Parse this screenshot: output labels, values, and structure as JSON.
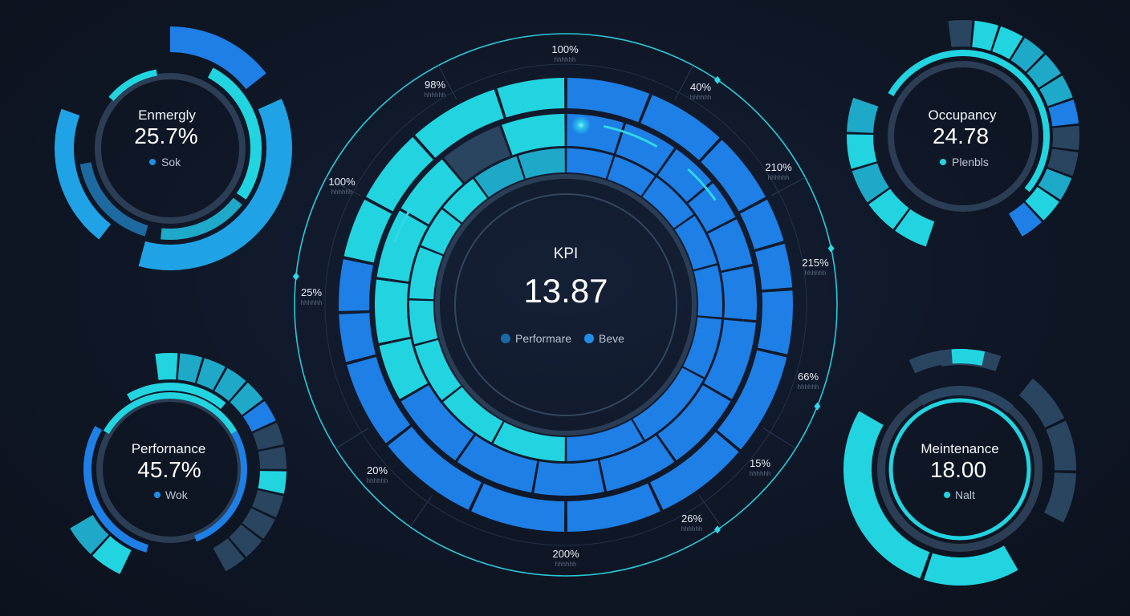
{
  "colors": {
    "background": "#0f1726",
    "cyan": "#22d4e0",
    "teal": "#1fa9c9",
    "blue": "#1e7fe6",
    "dark": "#2a4560",
    "ring": "#2f4157"
  },
  "kpi": {
    "label": "KPI",
    "value": "13.87",
    "legend": [
      {
        "label": "Performare",
        "color": "#1a6aa6"
      },
      {
        "label": "Beve",
        "color": "#1e8fe8"
      }
    ]
  },
  "scale_labels": [
    {
      "text": "100%",
      "sub": "hhhhhh"
    },
    {
      "text": "98%",
      "sub": "hhhhhh"
    },
    {
      "text": "40%",
      "sub": "hhhhhh"
    },
    {
      "text": "100%",
      "sub": "hhhhhh"
    },
    {
      "text": "210%",
      "sub": "hhhhhh"
    },
    {
      "text": "215%",
      "sub": "hhhhhh"
    },
    {
      "text": "25%",
      "sub": "hhhhhh"
    },
    {
      "text": "66%",
      "sub": "hhhhhh"
    },
    {
      "text": "20%",
      "sub": "hhhhhh"
    },
    {
      "text": "15%",
      "sub": "hhhhhh"
    },
    {
      "text": "26%",
      "sub": "hhhhhh"
    },
    {
      "text": "200%",
      "sub": "hhhhhh"
    }
  ],
  "gauges": [
    {
      "title": "Enmergly",
      "value": "25.7%",
      "legend": "Sok",
      "legend_color": "#1e8fe8"
    },
    {
      "title": "Occupancy",
      "value": "24.78",
      "legend": "Plenbls",
      "legend_color": "#22d4e0"
    },
    {
      "title": "Perfornance",
      "value": "45.7%",
      "legend": "Wok",
      "legend_color": "#1e8fe8"
    },
    {
      "title": "Meintenance",
      "value": "18.00",
      "legend": "Nalt",
      "legend_color": "#22d4e0"
    }
  ],
  "chart_data": {
    "type": "radial-gauge",
    "kpi": {
      "label": "KPI",
      "value": 13.87
    },
    "series": [
      {
        "name": "Enmergly",
        "value": 25.7,
        "unit": "%"
      },
      {
        "name": "Occupancy",
        "value": 24.78
      },
      {
        "name": "Perfornance",
        "value": 45.7,
        "unit": "%"
      },
      {
        "name": "Meintenance",
        "value": 18.0
      }
    ],
    "scale_labels": [
      "100%",
      "98%",
      "40%",
      "100%",
      "210%",
      "215%",
      "25%",
      "66%",
      "20%",
      "15%",
      "26%",
      "200%"
    ]
  }
}
